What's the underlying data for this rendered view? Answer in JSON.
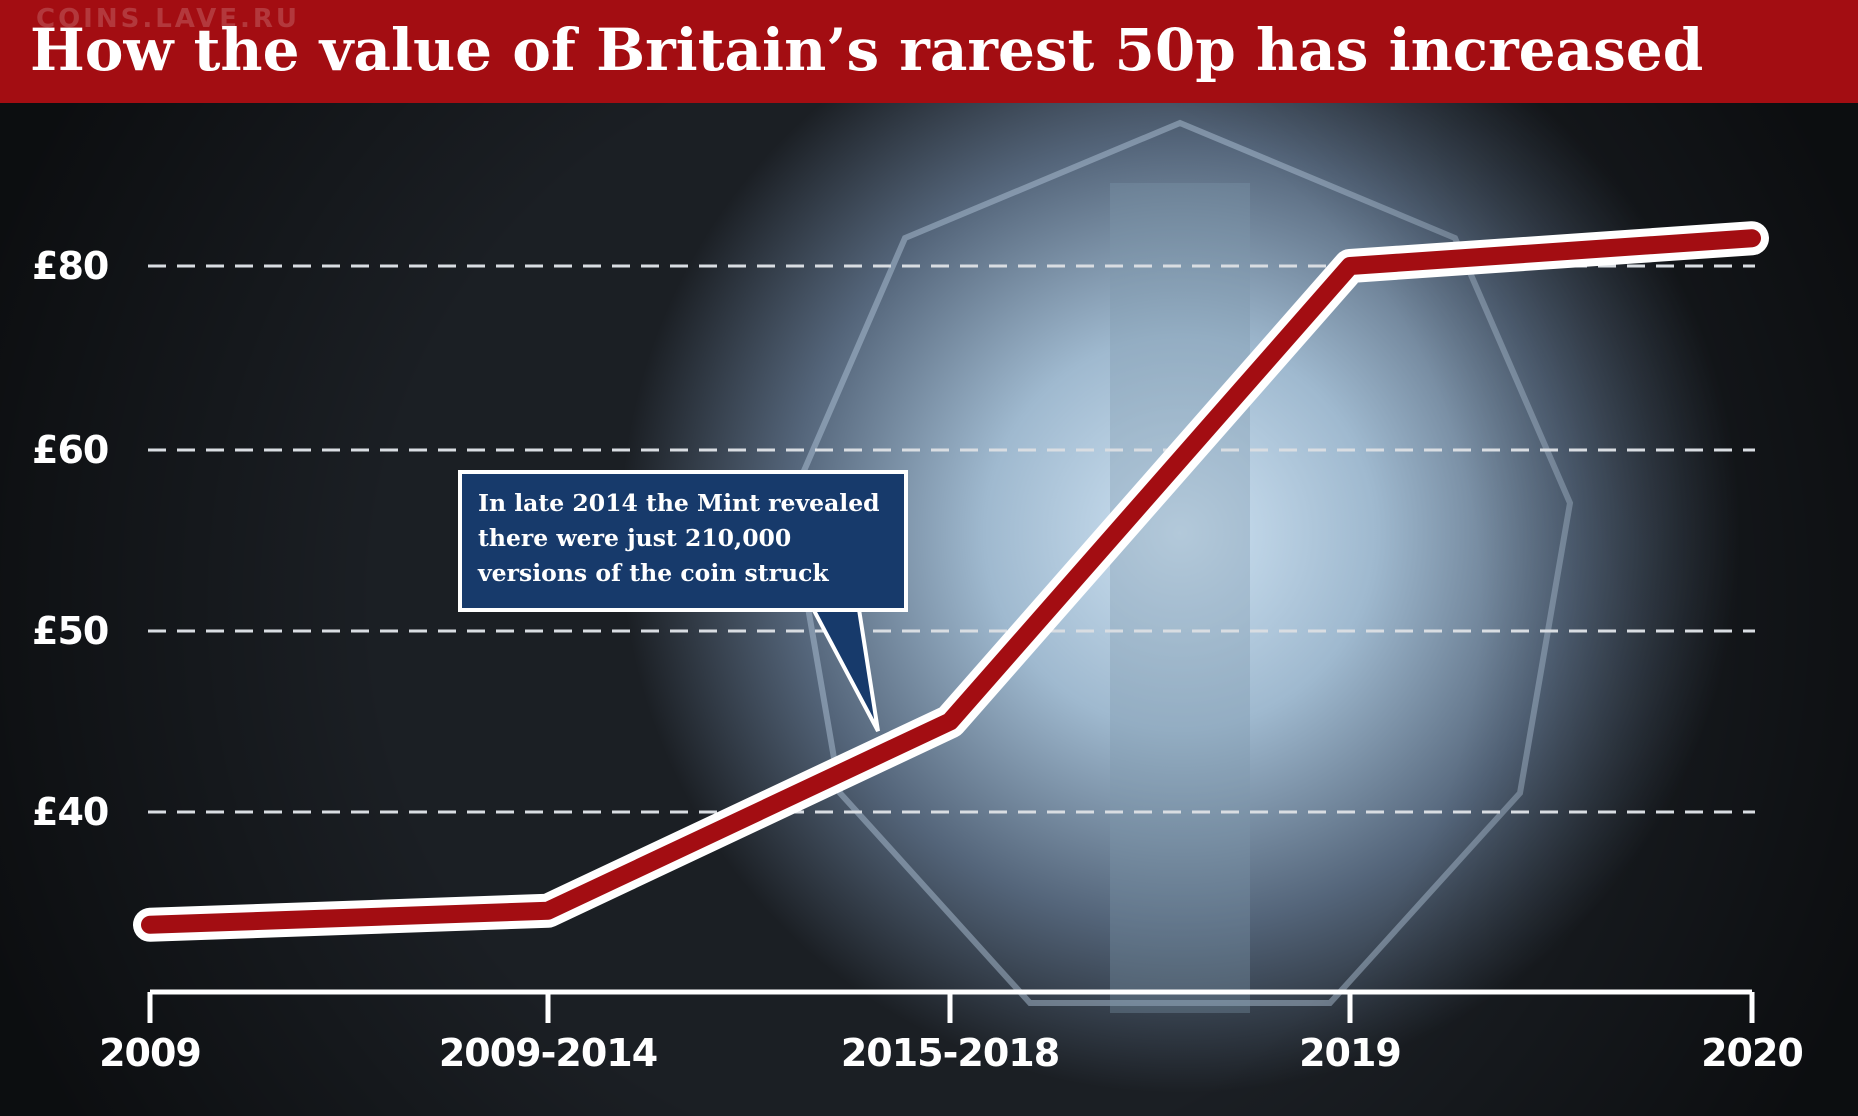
{
  "header": {
    "title": "How the value of Britain’s rarest 50p has increased",
    "watermark": "COINS.LAVE.RU"
  },
  "annotation": {
    "text": "In late 2014 the Mint revealed\nthere were just 210,000\nversions of the coin struck"
  },
  "colors": {
    "title_bar": "#a30d12",
    "line": "#a30d12",
    "line_outline": "#ffffff",
    "callout_bg": "#173a6b",
    "gridline": "#d9dde2"
  },
  "chart_data": {
    "type": "line",
    "title": "How the value of Britain’s rarest 50p has increased",
    "xlabel": "",
    "ylabel": "",
    "categories": [
      "2009",
      "2009-2014",
      "2015-2018",
      "2019",
      "2020"
    ],
    "y_ticks": [
      {
        "value": 40,
        "label": "£40"
      },
      {
        "value": 50,
        "label": "£50"
      },
      {
        "value": 60,
        "label": "£60"
      },
      {
        "value": 80,
        "label": "£80"
      }
    ],
    "series": [
      {
        "values": [
          32,
          33,
          45,
          80,
          83
        ]
      }
    ],
    "grid": "horizontal dashed",
    "legend": "none"
  }
}
